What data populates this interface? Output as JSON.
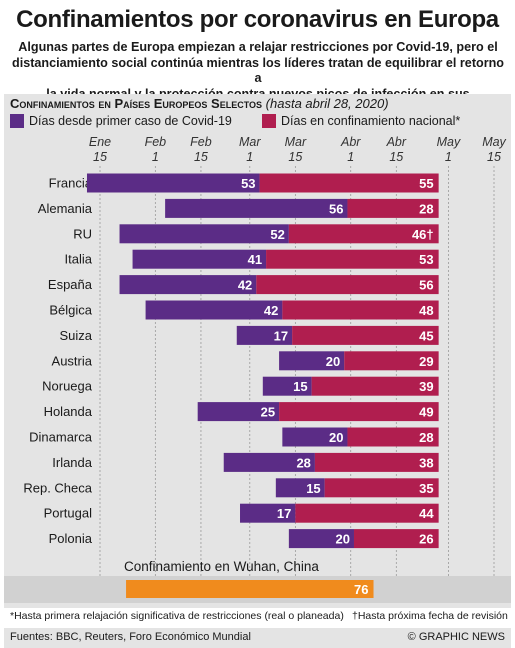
{
  "header": {
    "title": "Confinamientos por coronavirus en Europa",
    "subtitle_lines": [
      "Algunas partes de Europa empiezan a relajar restricciones por Covid-19, pero el",
      "distanciamiento social continúa mientras los líderes tratan de equilibrar el retorno a",
      "la vida normal y la protección contra nuevos picos de infección en sus poblaciones"
    ]
  },
  "chart_heading": {
    "title": "Confinamientos en Países Europeos Selectos",
    "note": "(hasta abril 28, 2020)"
  },
  "legend": {
    "series1": "Días desde primer caso de Covid-19",
    "series2": "Días en confinamiento nacional*"
  },
  "colors": {
    "series1": "#5b2c86",
    "series2": "#b01e4f",
    "wuhan": "#f08b1d",
    "panel": "#e4e4e4"
  },
  "chart_data": {
    "type": "bar",
    "orientation": "horizontal",
    "stacked": true,
    "x_axis": "dates",
    "x_ticks": [
      {
        "month": "Ene",
        "day": "15",
        "date": "2020-01-15"
      },
      {
        "month": "Feb",
        "day": "1",
        "date": "2020-02-01"
      },
      {
        "month": "Feb",
        "day": "15",
        "date": "2020-02-15"
      },
      {
        "month": "Mar",
        "day": "1",
        "date": "2020-03-01"
      },
      {
        "month": "Mar",
        "day": "15",
        "date": "2020-03-15"
      },
      {
        "month": "Abr",
        "day": "1",
        "date": "2020-04-01"
      },
      {
        "month": "Abr",
        "day": "15",
        "date": "2020-04-15"
      },
      {
        "month": "May",
        "day": "1",
        "date": "2020-05-01"
      },
      {
        "month": "May",
        "day": "15",
        "date": "2020-05-15"
      }
    ],
    "x_range": [
      "2020-01-15",
      "2020-05-15"
    ],
    "grid": "vertical",
    "categories": [
      "Francia",
      "Alemania",
      "RU",
      "Italia",
      "España",
      "Bélgica",
      "Suiza",
      "Austria",
      "Noruega",
      "Holanda",
      "Dinamarca",
      "Irlanda",
      "Rep. Checa",
      "Portugal",
      "Polonia"
    ],
    "series": [
      {
        "name": "Días desde primer caso de Covid-19",
        "values": [
          53,
          56,
          52,
          41,
          42,
          42,
          17,
          20,
          15,
          25,
          20,
          28,
          15,
          17,
          20
        ]
      },
      {
        "name": "Días en confinamiento nacional*",
        "values": [
          55,
          28,
          46,
          53,
          56,
          48,
          45,
          29,
          39,
          49,
          28,
          38,
          35,
          44,
          26
        ]
      }
    ],
    "value_labels": [
      [
        "53",
        "55"
      ],
      [
        "56",
        "28"
      ],
      [
        "52",
        "46†"
      ],
      [
        "41",
        "53"
      ],
      [
        "42",
        "56"
      ],
      [
        "42",
        "48"
      ],
      [
        "17",
        "45"
      ],
      [
        "20",
        "29"
      ],
      [
        "15",
        "39"
      ],
      [
        "25",
        "49"
      ],
      [
        "20",
        "28"
      ],
      [
        "28",
        "38"
      ],
      [
        "15",
        "35"
      ],
      [
        "17",
        "44"
      ],
      [
        "20",
        "26"
      ]
    ],
    "wuhan": {
      "label": "Confinamiento en Wuhan, China",
      "value": 76,
      "value_label": "76",
      "start": "2020-01-23"
    }
  },
  "footnotes": {
    "left": "*Hasta primera relajación significativa de restricciones (real o planeada)",
    "right": "†Hasta próxima fecha de revisión"
  },
  "footer": {
    "sources": "Fuentes: BBC, Reuters, Foro Económico Mundial",
    "credit": "© GRAPHIC NEWS"
  }
}
